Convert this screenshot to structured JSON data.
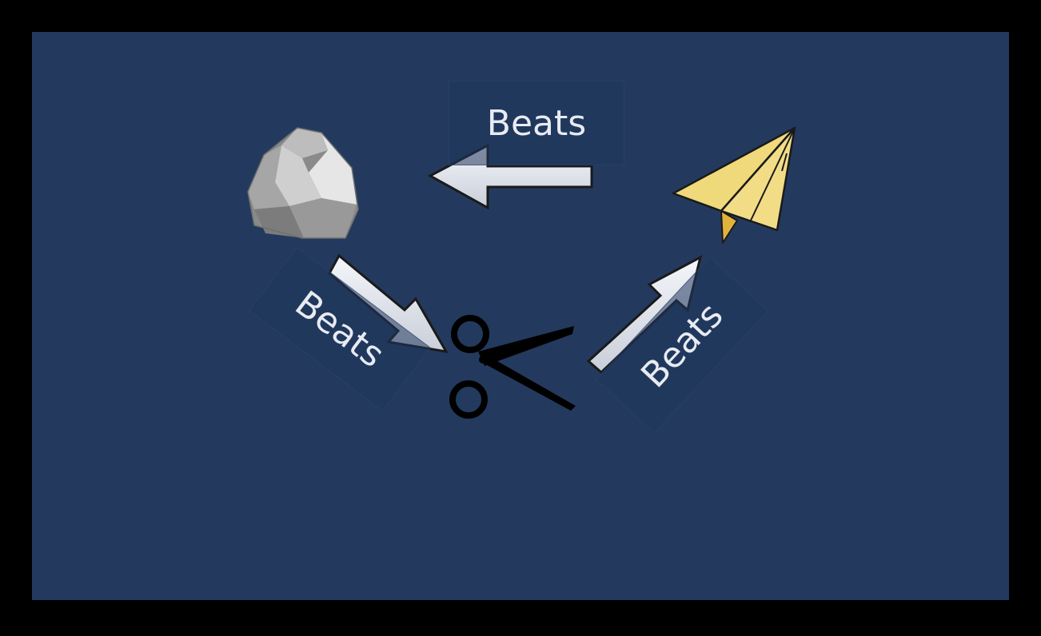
{
  "diagram": {
    "nodes": [
      {
        "id": "rock",
        "icon": "rock-icon"
      },
      {
        "id": "paper",
        "icon": "paper-plane-icon"
      },
      {
        "id": "scissors",
        "icon": "scissors-icon"
      }
    ],
    "edges": [
      {
        "from": "paper",
        "to": "rock",
        "label": "Beats"
      },
      {
        "from": "rock",
        "to": "scissors",
        "label": "Beats"
      },
      {
        "from": "scissors",
        "to": "paper",
        "label": "Beats"
      }
    ]
  },
  "colors": {
    "frame": "#000000",
    "panel": "#233a5e",
    "arrow_fill": "#dde1ea",
    "arrow_stroke": "#1a1a1a",
    "label_text": "#e8ebf2",
    "paper_yellow": "#f0d97a",
    "paper_fold": "#e0b43c"
  }
}
